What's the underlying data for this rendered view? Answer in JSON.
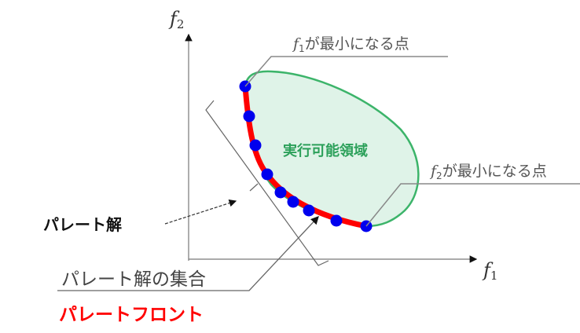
{
  "axes": {
    "x_label": "f",
    "x_sub": "1",
    "y_label": "f",
    "y_sub": "2"
  },
  "labels": {
    "f1_min_prefix": "f",
    "f1_min_sub": "1",
    "f1_min_text": "が最小になる点",
    "f2_min_prefix": "f",
    "f2_min_sub": "2",
    "f2_min_text": "が最小になる点",
    "feasible_region": "実行可能領域",
    "pareto_solution": "パレート解",
    "pareto_set": "パレート解の集合",
    "pareto_front": "パレートフロント"
  },
  "colors": {
    "region_fill": "#dff3e8",
    "region_stroke": "#3cb46a",
    "front": "#ff0000",
    "points": "#0000ee",
    "region_label": "#2ca05a",
    "pareto_front_label": "#ff0000",
    "annotation": "#555555"
  },
  "pareto_point_count": 9
}
